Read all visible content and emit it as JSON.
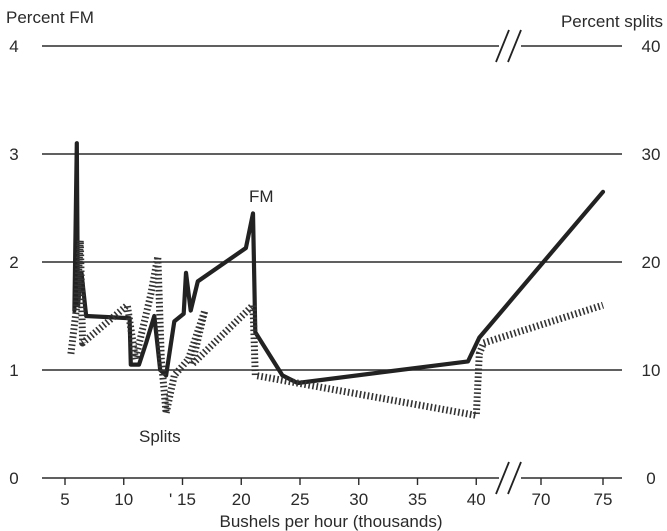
{
  "chart_data": {
    "type": "line",
    "title": "",
    "xlabel": "Bushels per hour (thousands)",
    "ylabel_left": "Percent FM",
    "ylabel_right": "Percent splits",
    "x_ticks": [
      "5",
      "10",
      "' 15",
      "20",
      "25",
      "30",
      "35",
      "40",
      "70",
      "75"
    ],
    "y_ticks_left": [
      "0",
      "1",
      "2",
      "3",
      "4"
    ],
    "y_ticks_right": [
      "0",
      "10",
      "20",
      "30",
      "40"
    ],
    "ylim_left": [
      0,
      4
    ],
    "ylim_right": [
      0,
      40
    ],
    "x_break_between": [
      40,
      70
    ],
    "grid": true,
    "series": [
      {
        "name": "FM",
        "axis": "left",
        "style": "solid",
        "points": [
          [
            5.8,
            1.55
          ],
          [
            6.0,
            3.1
          ],
          [
            6.1,
            1.6
          ],
          [
            6.4,
            1.9
          ],
          [
            6.7,
            1.6
          ],
          [
            6.8,
            1.5
          ],
          [
            10.5,
            1.48
          ],
          [
            10.6,
            1.05
          ],
          [
            11.3,
            1.05
          ],
          [
            11.9,
            1.25
          ],
          [
            12.6,
            1.5
          ],
          [
            13.1,
            1.0
          ],
          [
            13.6,
            0.95
          ],
          [
            14.3,
            1.45
          ],
          [
            15.1,
            1.52
          ],
          [
            15.3,
            1.9
          ],
          [
            15.7,
            1.55
          ],
          [
            16.3,
            1.82
          ],
          [
            20.4,
            2.13
          ],
          [
            21.0,
            2.45
          ],
          [
            21.2,
            1.35
          ],
          [
            23.5,
            0.95
          ],
          [
            24.8,
            0.88
          ],
          [
            39.3,
            1.08
          ],
          [
            41.5,
            1.3
          ],
          [
            75.0,
            2.65
          ]
        ]
      },
      {
        "name": "Splits",
        "axis": "right",
        "style": "dotted",
        "points": [
          [
            5.5,
            11.5
          ],
          [
            6.0,
            16.0
          ],
          [
            6.3,
            22.0
          ],
          [
            6.5,
            12.5
          ],
          [
            10.3,
            16.0
          ],
          [
            11.0,
            11.0
          ],
          [
            12.3,
            17.0
          ],
          [
            12.9,
            20.5
          ],
          [
            13.2,
            11.0
          ],
          [
            13.6,
            6.0
          ],
          [
            14.3,
            9.5
          ],
          [
            15.5,
            11.0
          ],
          [
            16.9,
            15.5
          ],
          [
            15.8,
            10.5
          ],
          [
            21.0,
            16.0
          ],
          [
            21.2,
            9.5
          ],
          [
            40.0,
            5.8
          ],
          [
            41.5,
            11.5
          ],
          [
            43.5,
            12.5
          ],
          [
            75.0,
            16.0
          ]
        ]
      }
    ],
    "annotations": [
      {
        "text": "FM",
        "near_series": "FM"
      },
      {
        "text": "Splits",
        "near_series": "Splits"
      }
    ]
  }
}
